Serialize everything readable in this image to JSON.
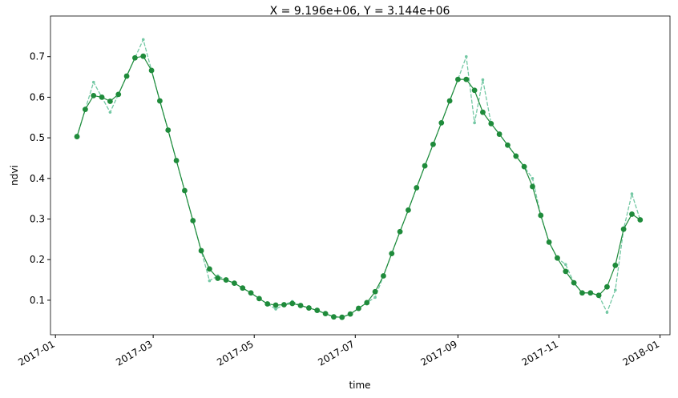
{
  "chart_data": {
    "type": "line",
    "title": "X = 9.196e+06, Y = 3.144e+06",
    "xlabel": "time",
    "ylabel": "ndvi",
    "x": [
      "2017-01-14",
      "2017-01-19",
      "2017-01-24",
      "2017-01-29",
      "2017-02-03",
      "2017-02-08",
      "2017-02-13",
      "2017-02-18",
      "2017-02-23",
      "2017-02-28",
      "2017-03-05",
      "2017-03-10",
      "2017-03-15",
      "2017-03-20",
      "2017-03-25",
      "2017-03-30",
      "2017-04-04",
      "2017-04-09",
      "2017-04-14",
      "2017-04-19",
      "2017-04-24",
      "2017-04-29",
      "2017-05-04",
      "2017-05-09",
      "2017-05-14",
      "2017-05-19",
      "2017-05-24",
      "2017-05-29",
      "2017-06-03",
      "2017-06-08",
      "2017-06-13",
      "2017-06-18",
      "2017-06-23",
      "2017-06-28",
      "2017-07-03",
      "2017-07-08",
      "2017-07-13",
      "2017-07-18",
      "2017-07-23",
      "2017-07-28",
      "2017-08-02",
      "2017-08-07",
      "2017-08-12",
      "2017-08-17",
      "2017-08-22",
      "2017-08-27",
      "2017-09-01",
      "2017-09-06",
      "2017-09-11",
      "2017-09-16",
      "2017-09-21",
      "2017-09-26",
      "2017-10-01",
      "2017-10-06",
      "2017-10-11",
      "2017-10-16",
      "2017-10-21",
      "2017-10-26",
      "2017-10-31",
      "2017-11-05",
      "2017-11-10",
      "2017-11-15",
      "2017-11-20",
      "2017-11-25",
      "2017-11-30",
      "2017-12-05",
      "2017-12-10",
      "2017-12-15",
      "2017-12-20"
    ],
    "series": [
      {
        "color": "#74c8a4",
        "style": "dashed",
        "values": [
          0.503,
          0.57,
          0.637,
          0.6,
          0.563,
          0.607,
          0.652,
          0.697,
          0.742,
          0.666,
          0.591,
          0.519,
          0.444,
          0.37,
          0.296,
          0.222,
          0.148,
          0.16,
          0.15,
          0.142,
          0.13,
          0.118,
          0.104,
          0.091,
          0.078,
          0.089,
          0.097,
          0.087,
          0.081,
          0.075,
          0.067,
          0.059,
          0.058,
          0.066,
          0.08,
          0.094,
          0.107,
          0.16,
          0.215,
          0.269,
          0.322,
          0.377,
          0.431,
          0.484,
          0.537,
          0.591,
          0.644,
          0.7,
          0.537,
          0.643,
          0.535,
          0.509,
          0.482,
          0.455,
          0.429,
          0.4,
          0.309,
          0.243,
          0.204,
          0.188,
          0.143,
          0.118,
          0.118,
          0.112,
          0.07,
          0.125,
          0.275,
          0.362,
          0.298
        ]
      },
      {
        "color": "#1f8b3b",
        "style": "solid",
        "values": [
          0.503,
          0.57,
          0.604,
          0.6,
          0.59,
          0.607,
          0.652,
          0.697,
          0.701,
          0.666,
          0.591,
          0.519,
          0.444,
          0.37,
          0.296,
          0.222,
          0.177,
          0.154,
          0.15,
          0.142,
          0.13,
          0.118,
          0.104,
          0.091,
          0.088,
          0.089,
          0.092,
          0.087,
          0.081,
          0.075,
          0.067,
          0.059,
          0.058,
          0.066,
          0.08,
          0.094,
          0.121,
          0.16,
          0.215,
          0.269,
          0.322,
          0.377,
          0.431,
          0.484,
          0.537,
          0.591,
          0.644,
          0.644,
          0.617,
          0.563,
          0.535,
          0.509,
          0.482,
          0.455,
          0.429,
          0.38,
          0.309,
          0.243,
          0.204,
          0.171,
          0.143,
          0.118,
          0.118,
          0.112,
          0.133,
          0.186,
          0.275,
          0.312,
          0.298
        ]
      }
    ],
    "xlim": [
      "2016-12-29",
      "2018-01-07"
    ],
    "xticks": [
      {
        "value": "2017-01-01",
        "label": "2017-01"
      },
      {
        "value": "2017-03-01",
        "label": "2017-03"
      },
      {
        "value": "2017-05-01",
        "label": "2017-05"
      },
      {
        "value": "2017-07-01",
        "label": "2017-07"
      },
      {
        "value": "2017-09-01",
        "label": "2017-09"
      },
      {
        "value": "2017-11-01",
        "label": "2017-11"
      },
      {
        "value": "2018-01-01",
        "label": "2018-01"
      }
    ],
    "ylim": [
      0.015,
      0.8
    ],
    "yticks": [
      0.1,
      0.2,
      0.3,
      0.4,
      0.5,
      0.6,
      0.7
    ]
  }
}
